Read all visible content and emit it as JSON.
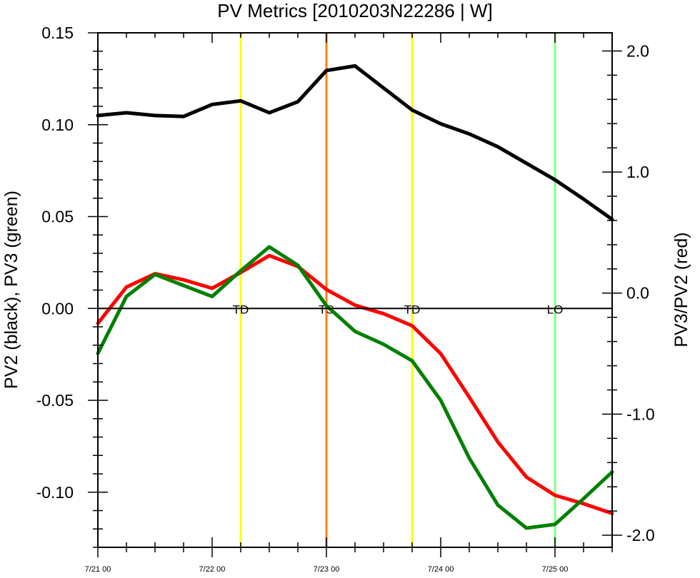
{
  "chart_data": {
    "type": "line",
    "title": "PV Metrics [2010203N22286 | W]",
    "ylabel_left": "PV2 (black), PV3 (green)",
    "ylabel_right": "PV3/PV2 (red)",
    "xlabel": "",
    "x_ticks": [
      {
        "t": 0,
        "label": "7/21 00"
      },
      {
        "t": 1,
        "label": "7/22 00"
      },
      {
        "t": 2,
        "label": "7/23 00"
      },
      {
        "t": 3,
        "label": "7/24 00"
      },
      {
        "t": 4,
        "label": "7/25 00"
      }
    ],
    "x_unit": "days since 7/21 00",
    "xlim": [
      0,
      4.5
    ],
    "ylim_left": [
      -0.13,
      0.15
    ],
    "ylim_right": [
      -2.1,
      2.15
    ],
    "left_ticks": [
      "0.15",
      "0.10",
      "0.05",
      "0.00",
      "-0.05",
      "-0.10"
    ],
    "right_ticks": [
      "2.0",
      "1.0",
      "0.0",
      "-1.0",
      "-2.0"
    ],
    "zero_line": true,
    "grid": false,
    "series": [
      {
        "name": "PV2",
        "axis": "left",
        "color": "#000000",
        "x": [
          0,
          0.25,
          0.5,
          0.75,
          1,
          1.25,
          1.5,
          1.75,
          2,
          2.25,
          2.5,
          2.75,
          3,
          3.25,
          3.5,
          3.75,
          4,
          4.25,
          4.5
        ],
        "y": [
          0.105,
          0.1065,
          0.105,
          0.1045,
          0.111,
          0.113,
          0.1065,
          0.1125,
          0.1295,
          0.132,
          0.12,
          0.108,
          0.1005,
          0.095,
          0.088,
          0.079,
          0.07,
          0.0595,
          0.0485
        ]
      },
      {
        "name": "PV3",
        "axis": "left",
        "color": "#008000",
        "x": [
          0,
          0.25,
          0.5,
          0.75,
          1,
          1.25,
          1.5,
          1.75,
          2,
          2.25,
          2.5,
          2.75,
          3,
          3.25,
          3.5,
          3.75,
          4,
          4.25,
          4.5
        ],
        "y": [
          -0.0245,
          0.0065,
          0.0185,
          0.0125,
          0.0065,
          0.0205,
          0.0335,
          0.0235,
          0.0015,
          -0.0125,
          -0.0195,
          -0.0285,
          -0.05,
          -0.0815,
          -0.107,
          -0.1195,
          -0.1175,
          -0.1035,
          -0.089
        ]
      },
      {
        "name": "PV3/PV2",
        "axis": "right",
        "color": "#ff0000",
        "x": [
          0,
          0.25,
          0.5,
          0.75,
          1,
          1.25,
          1.5,
          1.75,
          2,
          2.25,
          2.5,
          2.75,
          3,
          3.25,
          3.5,
          3.75,
          4,
          4.25,
          4.5
        ],
        "y": [
          -0.25,
          0.05,
          0.16,
          0.11,
          0.04,
          0.17,
          0.31,
          0.22,
          0.03,
          -0.1,
          -0.17,
          -0.27,
          -0.5,
          -0.86,
          -1.23,
          -1.52,
          -1.67,
          -1.74,
          -1.82
        ]
      }
    ],
    "vertical_lines": [
      {
        "t": 1.25,
        "label": "TD",
        "color": "#ffff00"
      },
      {
        "t": 2.0,
        "label": "TS",
        "color": "#ff8000"
      },
      {
        "t": 2.75,
        "label": "TD",
        "color": "#ffff00"
      },
      {
        "t": 4.0,
        "label": "LO",
        "color": "#80ff80"
      }
    ]
  }
}
